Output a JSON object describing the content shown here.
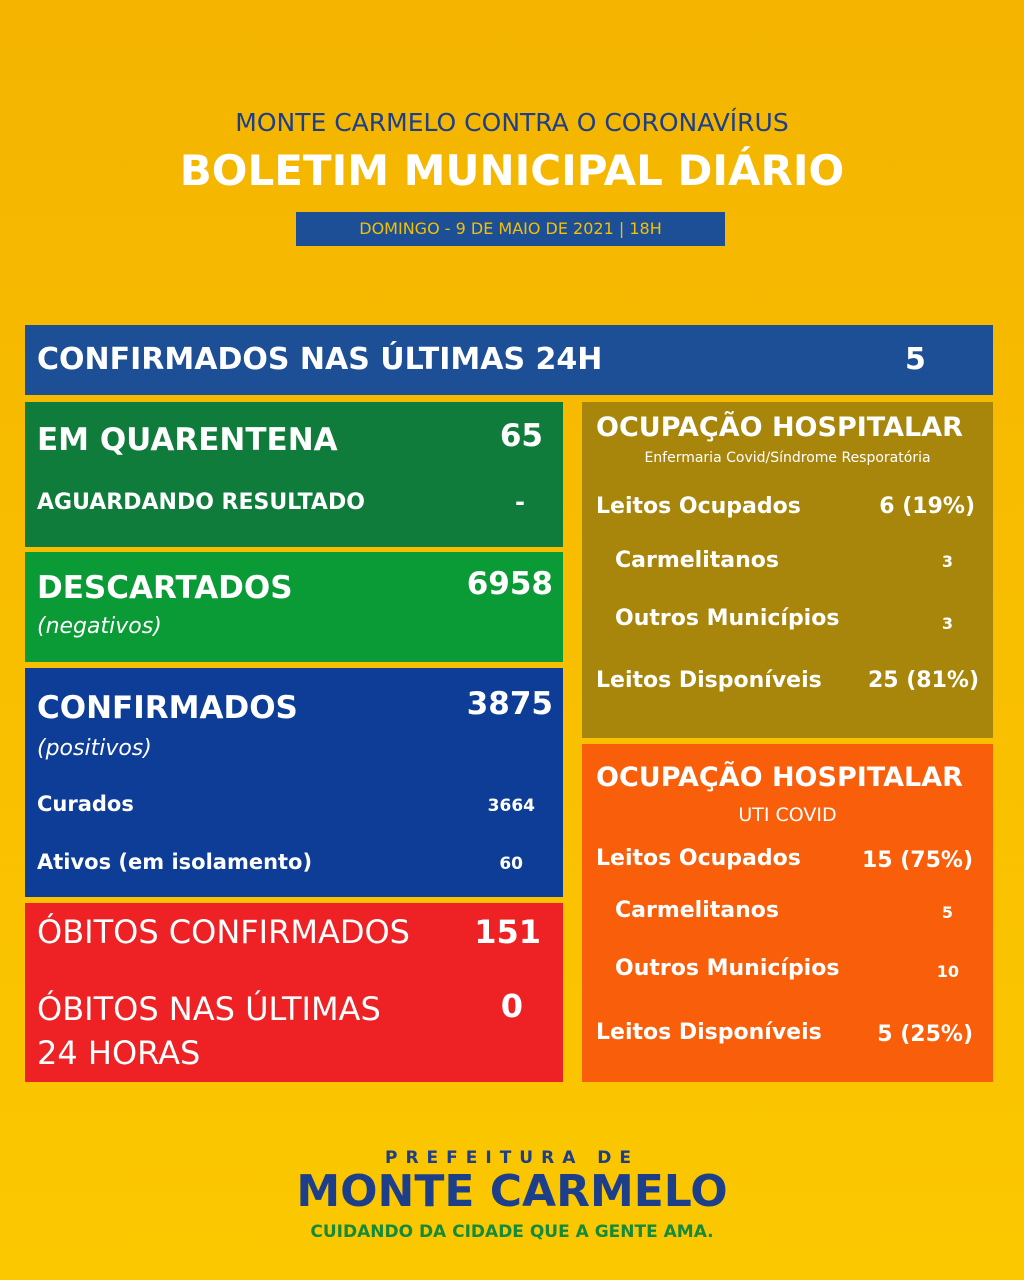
{
  "header": {
    "subtitle": "MONTE CARMELO CONTRA O CORONAVÍRUS",
    "title": "BOLETIM MUNICIPAL DIÁRIO",
    "date": "DOMINGO - 9 DE MAIO DE 2021 | 18H"
  },
  "confirmed_24h": {
    "label": "CONFIRMADOS NAS ÚLTIMAS 24H",
    "value": 5
  },
  "quarantine": {
    "label": "EM QUARENTENA",
    "value": 65,
    "awaiting_label": "AGUARDANDO RESULTADO",
    "awaiting_value": "-"
  },
  "discarded": {
    "label": "DESCARTADOS",
    "note": "(negativos)",
    "value": 6958
  },
  "confirmed": {
    "label": "CONFIRMADOS",
    "note": "(positivos)",
    "value": 3875,
    "rows": [
      {
        "label": "Curados",
        "value": 3664
      },
      {
        "label": "Ativos (em isolamento)",
        "value": 60
      }
    ]
  },
  "deaths": {
    "rows": [
      {
        "label": "ÓBITOS CONFIRMADOS",
        "value": 151
      },
      {
        "label": "ÓBITOS NAS ÚLTIMAS 24 HORAS",
        "value": 0
      }
    ]
  },
  "wards": {
    "title": "OCUPAÇÃO HOSPITALAR",
    "subtitle": "Enfermaria Covid/Síndrome Resporatória",
    "rows": [
      {
        "label": "Leitos Ocupados",
        "value": "6 (19%)"
      },
      {
        "label": "Carmelitanos",
        "value": 3
      },
      {
        "label": "Outros Municípios",
        "value": 3
      },
      {
        "label": "Leitos Disponíveis",
        "value": "25 (81%)"
      }
    ]
  },
  "icu": {
    "title": "OCUPAÇÃO HOSPITALAR",
    "subtitle": "UTI COVID",
    "rows": [
      {
        "label": "Leitos Ocupados",
        "value": "15 (75%)"
      },
      {
        "label": "Carmelitanos",
        "value": 5
      },
      {
        "label": "Outros Municípios",
        "value": 10
      },
      {
        "label": "Leitos Disponíveis",
        "value": "5 (25%)"
      }
    ]
  },
  "footer": {
    "line1": "PREFEITURA DE",
    "line2": "MONTE CARMELO",
    "slogan": "CUIDANDO DA CIDADE QUE A GENTE AMA."
  }
}
